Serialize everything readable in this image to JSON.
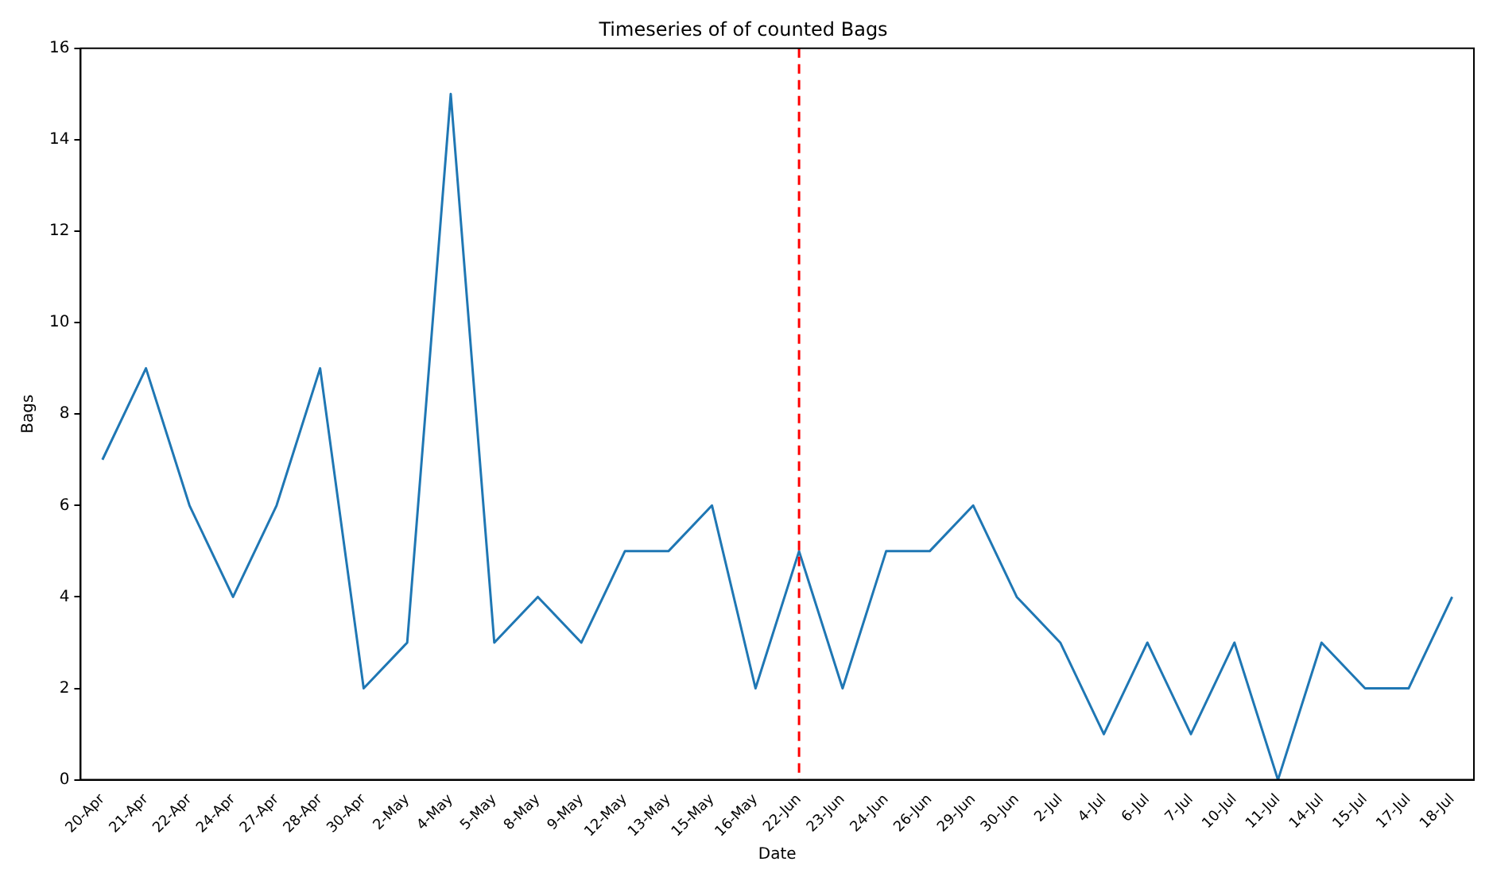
{
  "chart_data": {
    "type": "line",
    "title": "Timeseries of of counted Bags",
    "xlabel": "Date",
    "ylabel": "Bags",
    "categories": [
      "20-Apr",
      "21-Apr",
      "22-Apr",
      "24-Apr",
      "27-Apr",
      "28-Apr",
      "30-Apr",
      "2-May",
      "4-May",
      "5-May",
      "8-May",
      "9-May",
      "12-May",
      "13-May",
      "15-May",
      "16-May",
      "22-Jun",
      "23-Jun",
      "24-Jun",
      "26-Jun",
      "29-Jun",
      "30-Jun",
      "2-Jul",
      "4-Jul",
      "6-Jul",
      "7-Jul",
      "10-Jul",
      "11-Jul",
      "14-Jul",
      "15-Jul",
      "17-Jul",
      "18-Jul"
    ],
    "series": [
      {
        "color": "#1f77b4",
        "values": [
          7,
          9,
          6,
          4,
          6,
          9,
          2,
          3,
          15,
          3,
          4,
          3,
          5,
          5,
          6,
          2,
          5,
          2,
          5,
          5,
          6,
          4,
          3,
          1,
          3,
          1,
          3,
          0,
          3,
          2,
          2,
          4
        ]
      }
    ],
    "ylim": [
      0,
      16
    ],
    "yticks": [
      0,
      2,
      4,
      6,
      8,
      10,
      12,
      14,
      16
    ],
    "ref_lines": [
      {
        "axis": "x",
        "value": "22-Jun",
        "color": "#ff0000",
        "line_style": "dashed"
      }
    ],
    "grid": false,
    "legend": false,
    "marker": "none",
    "line_style": "solid"
  }
}
